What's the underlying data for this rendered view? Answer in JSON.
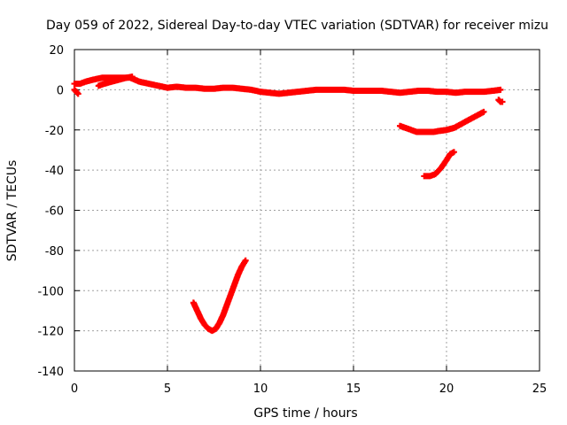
{
  "chart_data": {
    "type": "scatter",
    "title": "Day 059 of 2022, Sidereal Day-to-day VTEC variation (SDTVAR) for receiver mizu",
    "xlabel": "GPS time / hours",
    "ylabel": "SDTVAR / TECUs",
    "xlim": [
      0,
      25
    ],
    "ylim": [
      -140,
      20
    ],
    "xticks": [
      0,
      5,
      10,
      15,
      20,
      25
    ],
    "yticks": [
      -140,
      -120,
      -100,
      -80,
      -60,
      -40,
      -20,
      0,
      20
    ],
    "grid": true,
    "marker": "+",
    "color": "#ff0000",
    "series": [
      {
        "name": "main-track",
        "points": [
          [
            0,
            3
          ],
          [
            0.3,
            3
          ],
          [
            0.6,
            4
          ],
          [
            1,
            5
          ],
          [
            1.5,
            6
          ],
          [
            2,
            6
          ],
          [
            2.5,
            6
          ],
          [
            3,
            6
          ],
          [
            3.5,
            4
          ],
          [
            4,
            3
          ],
          [
            4.5,
            2
          ],
          [
            5,
            1
          ],
          [
            5.5,
            1.5
          ],
          [
            6,
            1
          ],
          [
            6.5,
            1
          ],
          [
            7,
            0.5
          ],
          [
            7.5,
            0.5
          ],
          [
            8,
            1
          ],
          [
            8.5,
            1
          ],
          [
            9,
            0.5
          ],
          [
            9.5,
            0
          ],
          [
            10,
            -1
          ],
          [
            10.5,
            -1.5
          ],
          [
            11,
            -2
          ],
          [
            11.5,
            -1.5
          ],
          [
            12,
            -1
          ],
          [
            12.5,
            -0.5
          ],
          [
            13,
            0
          ],
          [
            13.5,
            0
          ],
          [
            14,
            0
          ],
          [
            14.5,
            0
          ],
          [
            15,
            -0.5
          ],
          [
            15.5,
            -0.5
          ],
          [
            16,
            -0.5
          ],
          [
            16.5,
            -0.5
          ],
          [
            17,
            -1
          ],
          [
            17.5,
            -1.5
          ],
          [
            18,
            -1
          ],
          [
            18.5,
            -0.5
          ],
          [
            19,
            -0.5
          ],
          [
            19.5,
            -1
          ],
          [
            20,
            -1
          ],
          [
            20.5,
            -1.5
          ],
          [
            21,
            -1
          ],
          [
            21.5,
            -1
          ],
          [
            22,
            -1
          ],
          [
            22.5,
            -0.5
          ],
          [
            22.9,
            0
          ]
        ]
      },
      {
        "name": "early-upper-arc",
        "points": [
          [
            1.3,
            2
          ],
          [
            1.6,
            3
          ],
          [
            2,
            4
          ],
          [
            2.4,
            5
          ],
          [
            2.8,
            6
          ],
          [
            3.1,
            6.5
          ]
        ]
      },
      {
        "name": "early-lower-arc",
        "points": [
          [
            0,
            0
          ],
          [
            0.1,
            -1
          ],
          [
            0.2,
            -2
          ]
        ]
      },
      {
        "name": "dip-arc",
        "points": [
          [
            6.4,
            -106
          ],
          [
            6.6,
            -110
          ],
          [
            6.8,
            -114
          ],
          [
            7,
            -117
          ],
          [
            7.2,
            -119
          ],
          [
            7.4,
            -120
          ],
          [
            7.6,
            -119
          ],
          [
            7.8,
            -116
          ],
          [
            8,
            -112
          ],
          [
            8.2,
            -107
          ],
          [
            8.4,
            -102
          ],
          [
            8.6,
            -97
          ],
          [
            8.8,
            -92
          ],
          [
            9,
            -88
          ],
          [
            9.2,
            -85
          ]
        ]
      },
      {
        "name": "late-arc-a",
        "points": [
          [
            17.5,
            -18
          ],
          [
            17.8,
            -19
          ],
          [
            18.1,
            -20
          ],
          [
            18.4,
            -21
          ],
          [
            18.7,
            -21
          ],
          [
            19,
            -21
          ],
          [
            19.3,
            -21
          ],
          [
            19.6,
            -20.5
          ],
          [
            20,
            -20
          ],
          [
            20.4,
            -19
          ],
          [
            20.8,
            -17
          ],
          [
            21.2,
            -15
          ],
          [
            21.6,
            -13
          ],
          [
            22,
            -11
          ]
        ]
      },
      {
        "name": "late-arc-b",
        "points": [
          [
            18.8,
            -43
          ],
          [
            19.1,
            -43
          ],
          [
            19.4,
            -42
          ],
          [
            19.7,
            -39
          ],
          [
            20,
            -35
          ],
          [
            20.2,
            -32
          ],
          [
            20.4,
            -31
          ]
        ]
      },
      {
        "name": "end-tail",
        "points": [
          [
            22.8,
            -5
          ],
          [
            22.9,
            -6
          ],
          [
            23,
            -6
          ]
        ]
      }
    ]
  }
}
